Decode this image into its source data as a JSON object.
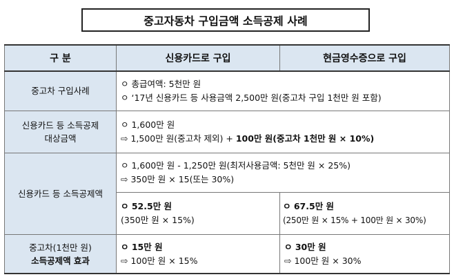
{
  "title": "중고자동차 구입금액 소득공제 사례",
  "header": {
    "col1": "구  분",
    "col2": "신용카드로 구입",
    "col3": "현금영수증으로 구입"
  },
  "rows": {
    "purchase": {
      "label": "중고차 구입사례",
      "line1": "ㅇ 총급여액: 5천만 원",
      "line2": "ㅇ ‘17년 신용카드 등 사용금액 2,500만 원(중고차 구입 1천만 원 포함)"
    },
    "target": {
      "label1": "신용카드 등 소득공제",
      "label2": "대상금액",
      "line1": "ㅇ 1,600만 원",
      "line2_plain": "⇨ 1,500만 원(중고차 제외) + ",
      "line2_bold": "100만 원(중고차 1천만 원 × 10%)"
    },
    "deduction": {
      "label": "신용카드 등 소득공제액",
      "line1": "ㅇ 1,600만 원 - 1,250만 원(최저사용금액: 5천만 원 × 25%)",
      "line2": "⇨ 350만 원 × 15(또는 30%)",
      "card_amount": "ㅇ 52.5만 원",
      "card_calc": "(350만 원 × 15%)",
      "cash_amount": "ㅇ 67.5만 원",
      "cash_calc": "(250만 원 × 15% + 100만 원 × 30%)"
    },
    "effect": {
      "label1": "중고차(1천만 원)",
      "label2": "소득공제액 효과",
      "card_amount": "ㅇ 15만 원",
      "card_calc": "⇨ 100만 원 × 15%",
      "cash_amount": "ㅇ 30만 원",
      "cash_calc": "⇨ 100만 원 × 30%"
    }
  }
}
